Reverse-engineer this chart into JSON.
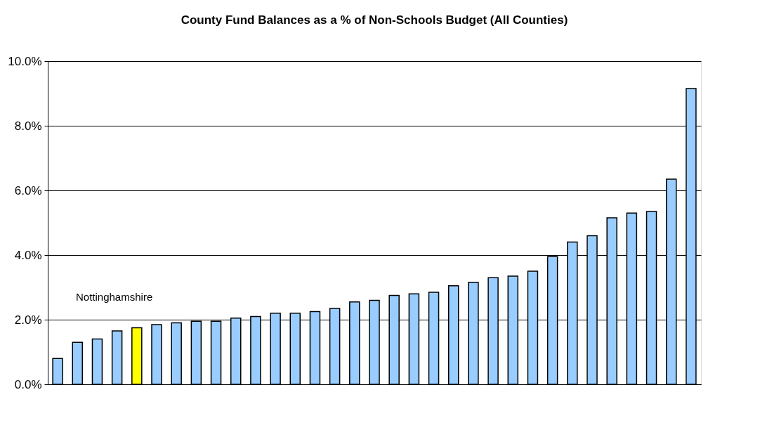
{
  "chart_data": {
    "type": "bar",
    "title": "County Fund Balances as a % of Non-Schools Budget (All Counties)",
    "categories": [
      null,
      null,
      null,
      null,
      null,
      null,
      null,
      null,
      null,
      null,
      null,
      null,
      null,
      null,
      null,
      null,
      null,
      null,
      null,
      null,
      null,
      null,
      null,
      null,
      null,
      null,
      null,
      null,
      null,
      null,
      null,
      null,
      null
    ],
    "values": [
      0.8,
      1.3,
      1.4,
      1.65,
      1.75,
      1.85,
      1.9,
      1.95,
      1.95,
      2.05,
      2.1,
      2.2,
      2.2,
      2.25,
      2.35,
      2.55,
      2.6,
      2.75,
      2.8,
      2.85,
      3.05,
      3.15,
      3.3,
      3.35,
      3.5,
      3.95,
      4.4,
      4.6,
      5.15,
      5.3,
      5.35,
      6.35,
      9.15
    ],
    "colors": [
      "#99ccff",
      "#99ccff",
      "#99ccff",
      "#99ccff",
      "#ffff00",
      "#99ccff",
      "#99ccff",
      "#99ccff",
      "#99ccff",
      "#99ccff",
      "#99ccff",
      "#99ccff",
      "#99ccff",
      "#99ccff",
      "#99ccff",
      "#99ccff",
      "#99ccff",
      "#99ccff",
      "#99ccff",
      "#99ccff",
      "#99ccff",
      "#99ccff",
      "#99ccff",
      "#99ccff",
      "#99ccff",
      "#99ccff",
      "#99ccff",
      "#99ccff",
      "#99ccff",
      "#99ccff",
      "#99ccff",
      "#99ccff",
      "#99ccff"
    ],
    "ylim": [
      0,
      10
    ],
    "yticks": [
      {
        "value": 0,
        "label": "0.0%"
      },
      {
        "value": 2,
        "label": "2.0%"
      },
      {
        "value": 4,
        "label": "4.0%"
      },
      {
        "value": 6,
        "label": "6.0%"
      },
      {
        "value": 8,
        "label": "8.0%"
      },
      {
        "value": 10,
        "label": "10.0%"
      }
    ],
    "grid": "y",
    "annotations": [
      "Nottinghamshire"
    ]
  }
}
